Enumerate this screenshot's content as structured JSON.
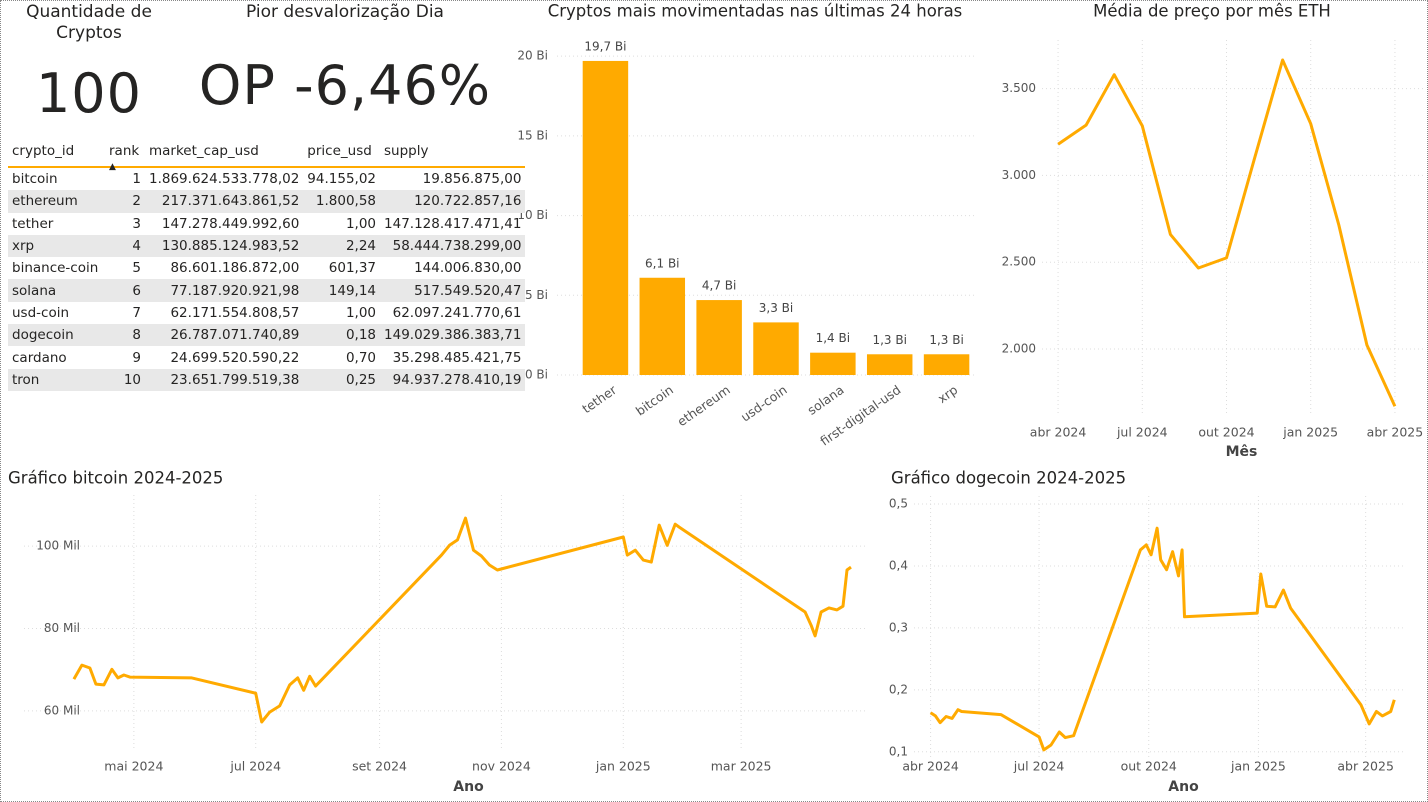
{
  "cards": [
    {
      "title": "Quantidade de Cryptos",
      "value": 100
    },
    {
      "title": "Pior desvalorização Dia",
      "value": "OP -6,46%"
    }
  ],
  "table": {
    "columns": [
      "crypto_id",
      "rank",
      "market_cap_usd",
      "price_usd",
      "supply"
    ],
    "rows": [
      [
        "bitcoin",
        "1",
        "1.869.624.533.778,02",
        "94.155,02",
        "19.856.875,00"
      ],
      [
        "ethereum",
        "2",
        "217.371.643.861,52",
        "1.800,58",
        "120.722.857,16"
      ],
      [
        "tether",
        "3",
        "147.278.449.992,60",
        "1,00",
        "147.128.417.471,41"
      ],
      [
        "xrp",
        "4",
        "130.885.124.983,52",
        "2,24",
        "58.444.738.299,00"
      ],
      [
        "binance-coin",
        "5",
        "86.601.186.872,00",
        "601,37",
        "144.006.830,00"
      ],
      [
        "solana",
        "6",
        "77.187.920.921,98",
        "149,14",
        "517.549.520,47"
      ],
      [
        "usd-coin",
        "7",
        "62.171.554.808,57",
        "1,00",
        "62.097.241.770,61"
      ],
      [
        "dogecoin",
        "8",
        "26.787.071.740,89",
        "0,18",
        "149.029.386.383,71"
      ],
      [
        "cardano",
        "9",
        "24.699.520.590,22",
        "0,70",
        "35.298.485.421,75"
      ],
      [
        "tron",
        "10",
        "23.651.799.519,38",
        "0,25",
        "94.937.278.410,19"
      ]
    ]
  },
  "chart_data": [
    {
      "type": "bar",
      "title": "Cryptos mais movimentadas nas últimas 24 horas",
      "color": "#FFAA00",
      "grid": true,
      "categories": [
        "tether",
        "bitcoin",
        "ethereum",
        "usd-coin",
        "solana",
        "first-digital-usd",
        "xrp"
      ],
      "values": [
        19.7,
        6.1,
        4.7,
        3.3,
        1.4,
        1.3,
        1.3
      ],
      "value_labels": [
        "19,7 Bi",
        "6,1 Bi",
        "4,7 Bi",
        "3,3 Bi",
        "1,4 Bi",
        "1,3 Bi",
        "1,3 Bi"
      ],
      "ylim": [
        0,
        20.7
      ],
      "yticks": [
        {
          "value": 0,
          "label": "0 Bi"
        },
        {
          "value": 5,
          "label": "5 Bi"
        },
        {
          "value": 10,
          "label": "10 Bi"
        },
        {
          "value": 15,
          "label": "15 Bi"
        },
        {
          "value": 20,
          "label": "20 Bi"
        }
      ]
    },
    {
      "type": "line",
      "title": "Média de preço por mês ETH",
      "xlabel": "Mês",
      "color": "#FFAA00",
      "grid": true,
      "x": [
        "2024-04",
        "2024-05",
        "2024-06",
        "2024-07",
        "2024-08",
        "2024-09",
        "2024-10",
        "2024-11",
        "2024-12",
        "2025-01",
        "2025-02",
        "2025-03",
        "2025-04"
      ],
      "values": [
        3180,
        3290,
        3580,
        3285,
        2660,
        2467,
        2525,
        3100,
        3665,
        3298,
        2715,
        2023,
        1670
      ],
      "xlim": [
        "2024-03",
        "2025-05"
      ],
      "xticks": [
        {
          "value": "2024-04",
          "label": "abr 2024"
        },
        {
          "value": "2024-07",
          "label": "jul 2024"
        },
        {
          "value": "2024-10",
          "label": "out 2024"
        },
        {
          "value": "2025-01",
          "label": "jan 2025"
        },
        {
          "value": "2025-04",
          "label": "abr 2025"
        }
      ],
      "ylim": [
        1620,
        3780
      ],
      "yticks": [
        {
          "value": 2000,
          "label": "2.000"
        },
        {
          "value": 2500,
          "label": "2.500"
        },
        {
          "value": 3000,
          "label": "3.000"
        },
        {
          "value": 3500,
          "label": "3.500"
        }
      ]
    },
    {
      "type": "line",
      "title": "Gráfico bitcoin 2024-2025",
      "xlabel": "Ano",
      "color": "#FFAA00",
      "grid": true,
      "x": [
        "2024-04-01",
        "2024-04-05",
        "2024-04-09",
        "2024-04-12",
        "2024-04-16",
        "2024-04-20",
        "2024-04-23",
        "2024-04-26",
        "2024-04-29",
        "2024-05-30",
        "2024-07-01",
        "2024-07-04",
        "2024-07-08",
        "2024-07-13",
        "2024-07-18",
        "2024-07-22",
        "2024-07-25",
        "2024-07-28",
        "2024-07-31",
        "2024-10-02",
        "2024-10-06",
        "2024-10-10",
        "2024-10-14",
        "2024-10-18",
        "2024-10-22",
        "2024-10-26",
        "2024-10-30",
        "2025-01-01",
        "2025-01-03",
        "2025-01-07",
        "2025-01-11",
        "2025-01-15",
        "2025-01-19",
        "2025-01-23",
        "2025-01-27",
        "2025-01-29",
        "2025-04-02",
        "2025-04-05",
        "2025-04-07",
        "2025-04-10",
        "2025-04-14",
        "2025-04-18",
        "2025-04-21",
        "2025-04-23",
        "2025-04-25"
      ],
      "values": [
        67700,
        71100,
        70400,
        66500,
        66300,
        70100,
        68000,
        68700,
        68200,
        68000,
        64300,
        57300,
        59700,
        61200,
        66300,
        68000,
        65000,
        68400,
        66000,
        97800,
        100200,
        101500,
        106800,
        99000,
        97600,
        95400,
        94200,
        102200,
        97800,
        99000,
        96600,
        96100,
        105100,
        100200,
        105300,
        104600,
        84000,
        80800,
        78200,
        84000,
        85000,
        84500,
        85400,
        94200,
        94900
      ],
      "xlim": [
        "2024-03-01",
        "2025-05-02"
      ],
      "xticks": [
        {
          "value": "2024-05-01",
          "label": "mai 2024"
        },
        {
          "value": "2024-07-01",
          "label": "jul 2024"
        },
        {
          "value": "2024-09-01",
          "label": "set 2024"
        },
        {
          "value": "2024-11-01",
          "label": "nov 2024"
        },
        {
          "value": "2025-01-01",
          "label": "jan 2025"
        },
        {
          "value": "2025-03-01",
          "label": "mar 2025"
        }
      ],
      "ylim": [
        50500,
        112400
      ],
      "yticks": [
        {
          "value": 60000,
          "label": "60 Mil"
        },
        {
          "value": 80000,
          "label": "80 Mil"
        },
        {
          "value": 100000,
          "label": "100 Mil"
        }
      ]
    },
    {
      "type": "line",
      "title": "Gráfico dogecoin 2024-2025",
      "xlabel": "Ano",
      "color": "#FFAA00",
      "grid": true,
      "x": [
        "2024-04-01",
        "2024-04-05",
        "2024-04-09",
        "2024-04-14",
        "2024-04-19",
        "2024-04-24",
        "2024-04-27",
        "2024-05-30",
        "2024-07-01",
        "2024-07-05",
        "2024-07-11",
        "2024-07-18",
        "2024-07-23",
        "2024-07-30",
        "2024-09-24",
        "2024-09-29",
        "2024-10-03",
        "2024-10-08",
        "2024-10-11",
        "2024-10-16",
        "2024-10-21",
        "2024-10-26",
        "2024-10-29",
        "2024-10-31",
        "2024-12-31",
        "2025-01-03",
        "2025-01-08",
        "2025-01-15",
        "2025-01-22",
        "2025-01-28",
        "2025-03-28",
        "2025-04-04",
        "2025-04-10",
        "2025-04-15",
        "2025-04-22",
        "2025-04-25"
      ],
      "values": [
        0.163,
        0.158,
        0.147,
        0.157,
        0.154,
        0.168,
        0.165,
        0.16,
        0.124,
        0.103,
        0.111,
        0.132,
        0.123,
        0.126,
        0.426,
        0.434,
        0.418,
        0.461,
        0.41,
        0.394,
        0.423,
        0.384,
        0.426,
        0.318,
        0.324,
        0.387,
        0.335,
        0.334,
        0.361,
        0.332,
        0.176,
        0.145,
        0.165,
        0.158,
        0.165,
        0.184
      ],
      "xlim": [
        "2024-03-08",
        "2025-05-04"
      ],
      "xticks": [
        {
          "value": "2024-04-01",
          "label": "abr 2024"
        },
        {
          "value": "2024-07-01",
          "label": "jul 2024"
        },
        {
          "value": "2024-10-01",
          "label": "out 2024"
        },
        {
          "value": "2025-01-01",
          "label": "jan 2025"
        },
        {
          "value": "2025-04-01",
          "label": "abr 2025"
        }
      ],
      "ylim": [
        0.09,
        0.513
      ],
      "yticks": [
        {
          "value": 0.1,
          "label": "0,1"
        },
        {
          "value": 0.2,
          "label": "0,2"
        },
        {
          "value": 0.3,
          "label": "0,3"
        },
        {
          "value": 0.4,
          "label": "0,4"
        },
        {
          "value": 0.5,
          "label": "0,5"
        }
      ]
    }
  ]
}
